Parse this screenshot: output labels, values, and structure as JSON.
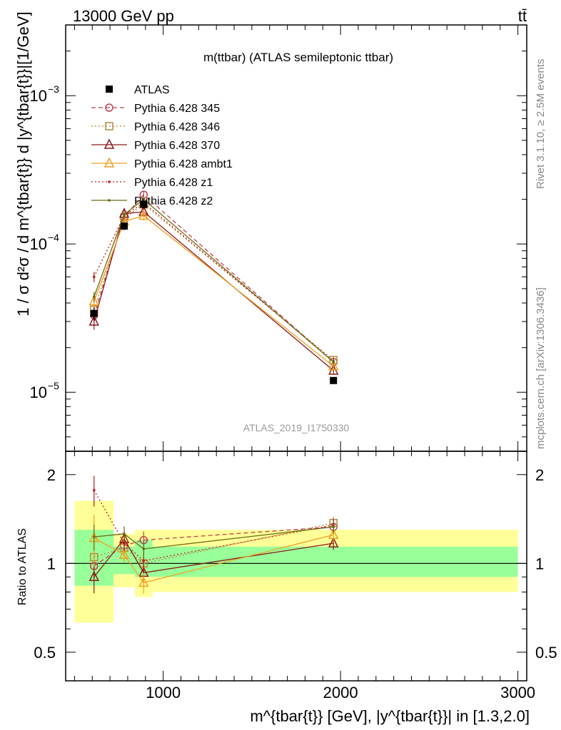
{
  "header": {
    "left": "13000 GeV pp",
    "right": "tt̄"
  },
  "side_labels": {
    "rivet": "Rivet 3.1.10, ≥ 2.5M events",
    "source": "mcplots.cern.ch [arXiv:1306.3436]"
  },
  "chart_data": [
    {
      "type": "scatter",
      "title": "m(ttbar) (ATLAS semileptonic ttbar)",
      "watermark": "ATLAS_2019_I1750330",
      "ylabel": "1 / σ d²σ / d m^{tbar{t}} d |y^{tbar{t}}|[1/GeV]",
      "xlim": [
        450,
        3050
      ],
      "ylim": [
        4e-06,
        0.003
      ],
      "yscale": "log",
      "yticks": [
        {
          "value": 1e-05,
          "mant": "10",
          "exp": "−5"
        },
        {
          "value": 0.0001,
          "mant": "10",
          "exp": "−4"
        },
        {
          "value": 0.001,
          "mant": "10",
          "exp": "−3"
        }
      ],
      "legend_position": "top-left",
      "series": [
        {
          "name": "ATLAS",
          "color": "#000000",
          "dash": "none",
          "marker": "filled-square",
          "x": [
            610,
            780,
            890,
            1960
          ],
          "y": [
            3.4e-05,
            0.000132,
            0.000185,
            1.2e-05
          ],
          "err": [
            0.1,
            0.06,
            0.06,
            0.05
          ]
        },
        {
          "name": "Pythia 6.428 345",
          "color": "#c0404e",
          "dash": "6,4",
          "marker": "open-circle",
          "x": [
            610,
            780,
            890,
            1960
          ],
          "y": [
            3.3e-05,
            0.000152,
            0.000215,
            1.6e-05
          ],
          "err": [
            0.1,
            0.05,
            0.06,
            0.05
          ]
        },
        {
          "name": "Pythia 6.428 346",
          "color": "#b58a3c",
          "dash": "2,3",
          "marker": "open-square",
          "x": [
            610,
            780,
            890,
            1960
          ],
          "y": [
            3.6e-05,
            0.00015,
            0.000185,
            1.65e-05
          ],
          "err": [
            0.1,
            0.05,
            0.06,
            0.05
          ]
        },
        {
          "name": "Pythia 6.428 370",
          "color": "#8b1a1a",
          "dash": "none",
          "marker": "open-triangle",
          "x": [
            610,
            780,
            890,
            1960
          ],
          "y": [
            3e-05,
            0.00016,
            0.000165,
            1.4e-05
          ],
          "err": [
            0.12,
            0.05,
            0.06,
            0.05
          ]
        },
        {
          "name": "Pythia 6.428 ambt1",
          "color": "#f0a020",
          "dash": "none",
          "marker": "open-triangle",
          "x": [
            610,
            780,
            890,
            1960
          ],
          "y": [
            4.1e-05,
            0.000142,
            0.000155,
            1.5e-05
          ],
          "err": [
            0.1,
            0.05,
            0.07,
            0.05
          ]
        },
        {
          "name": "Pythia 6.428 z1",
          "color": "#c01818",
          "dash": "2,3",
          "marker": "dot",
          "x": [
            610,
            780,
            890,
            1960
          ],
          "y": [
            6e-05,
            0.000155,
            0.00019,
            1.62e-05
          ],
          "err": [
            0.08,
            0.05,
            0.06,
            0.05
          ]
        },
        {
          "name": "Pythia 6.428 z2",
          "color": "#6b6b10",
          "dash": "none",
          "marker": "dot",
          "x": [
            610,
            780,
            890,
            1960
          ],
          "y": [
            4.4e-05,
            0.000158,
            0.0002,
            1.6e-05
          ],
          "err": [
            0.08,
            0.05,
            0.06,
            0.05
          ]
        }
      ]
    },
    {
      "type": "scatter",
      "ylabel": "Ratio to ATLAS",
      "xlabel": "m^{tbar{t}} [GeV], |y^{tbar{t}}| in [1.3,2.0]",
      "xlim": [
        450,
        3050
      ],
      "ylim": [
        0.4,
        2.4
      ],
      "yscale": "log",
      "xticks": [
        1000,
        2000,
        3000
      ],
      "yticks": [
        0.5,
        1,
        2
      ],
      "reference": 1,
      "bands": [
        {
          "x0": 500,
          "x1": 720,
          "inner": [
            0.84,
            1.3
          ],
          "outer": [
            0.63,
            1.63
          ]
        },
        {
          "x0": 720,
          "x1": 840,
          "inner": [
            0.92,
            1.14
          ],
          "outer": [
            0.83,
            1.26
          ]
        },
        {
          "x0": 840,
          "x1": 940,
          "inner": [
            0.9,
            1.2
          ],
          "outer": [
            0.77,
            1.3
          ]
        },
        {
          "x0": 940,
          "x1": 3000,
          "inner": [
            0.9,
            1.14
          ],
          "outer": [
            0.8,
            1.3
          ]
        }
      ],
      "band_colors": {
        "inner": "#99ff99",
        "outer": "#ffff99"
      },
      "series": [
        {
          "name": "Pythia 6.428 345",
          "color": "#c0404e",
          "dash": "6,4",
          "marker": "open-circle",
          "x": [
            610,
            780,
            890,
            1960
          ],
          "y": [
            0.98,
            1.15,
            1.2,
            1.33
          ],
          "err": [
            0.1,
            0.06,
            0.07,
            0.05
          ]
        },
        {
          "name": "Pythia 6.428 346",
          "color": "#b58a3c",
          "dash": "2,3",
          "marker": "open-square",
          "x": [
            610,
            780,
            890,
            1960
          ],
          "y": [
            1.05,
            1.13,
            1.0,
            1.37
          ],
          "err": [
            0.1,
            0.06,
            0.07,
            0.05
          ]
        },
        {
          "name": "Pythia 6.428 370",
          "color": "#8b1a1a",
          "dash": "none",
          "marker": "open-triangle",
          "x": [
            610,
            780,
            890,
            1960
          ],
          "y": [
            0.9,
            1.21,
            0.93,
            1.17
          ],
          "err": [
            0.12,
            0.06,
            0.07,
            0.05
          ]
        },
        {
          "name": "Pythia 6.428 ambt1",
          "color": "#f0a020",
          "dash": "none",
          "marker": "open-triangle",
          "x": [
            610,
            780,
            890,
            1960
          ],
          "y": [
            1.22,
            1.07,
            0.86,
            1.25
          ],
          "err": [
            0.2,
            0.06,
            0.08,
            0.05
          ]
        },
        {
          "name": "Pythia 6.428 z1",
          "color": "#c01818",
          "dash": "2,3",
          "marker": "dot",
          "x": [
            610,
            780,
            890,
            1960
          ],
          "y": [
            1.77,
            1.17,
            1.02,
            1.35
          ],
          "err": [
            0.12,
            0.06,
            0.07,
            0.05
          ]
        },
        {
          "name": "Pythia 6.428 z2",
          "color": "#6b6b10",
          "dash": "none",
          "marker": "dot",
          "x": [
            610,
            780,
            890,
            1960
          ],
          "y": [
            1.23,
            1.26,
            1.12,
            1.33
          ],
          "err": [
            0.1,
            0.06,
            0.07,
            0.05
          ]
        }
      ]
    }
  ]
}
